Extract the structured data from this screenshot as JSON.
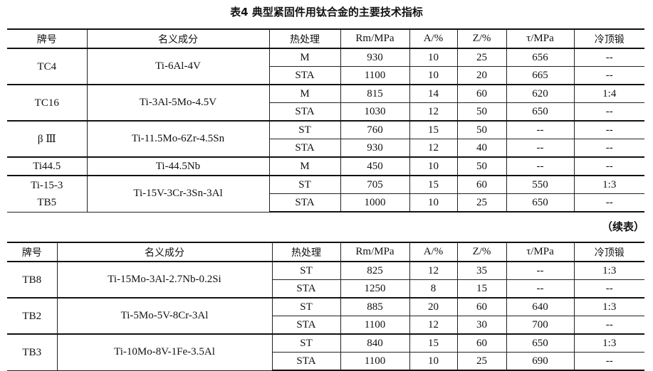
{
  "title": "表4  典型紧固件用钛合金的主要技术指标",
  "continued_label": "（续表）",
  "headers": [
    "牌号",
    "名义成分",
    "热处理",
    "Rm/MPa",
    "A/%",
    "Z/%",
    "τ/MPa",
    "冷顶锻"
  ],
  "table1": [
    {
      "grade": "TC4",
      "composition": "Ti-6Al-4V",
      "rows": [
        {
          "treatment": "M",
          "rm": "930",
          "a": "10",
          "z": "25",
          "tau": "656",
          "cold": "--"
        },
        {
          "treatment": "STA",
          "rm": "1100",
          "a": "10",
          "z": "20",
          "tau": "665",
          "cold": "--"
        }
      ]
    },
    {
      "grade": "TC16",
      "composition": "Ti-3Al-5Mo-4.5V",
      "rows": [
        {
          "treatment": "M",
          "rm": "815",
          "a": "14",
          "z": "60",
          "tau": "620",
          "cold": "1:4"
        },
        {
          "treatment": "STA",
          "rm": "1030",
          "a": "12",
          "z": "50",
          "tau": "650",
          "cold": "--"
        }
      ]
    },
    {
      "grade": "β Ⅲ",
      "composition": "Ti-11.5Mo-6Zr-4.5Sn",
      "rows": [
        {
          "treatment": "ST",
          "rm": "760",
          "a": "15",
          "z": "50",
          "tau": "--",
          "cold": "--"
        },
        {
          "treatment": "STA",
          "rm": "930",
          "a": "12",
          "z": "40",
          "tau": "--",
          "cold": "--"
        }
      ]
    },
    {
      "grade": "Ti44.5",
      "composition": "Ti-44.5Nb",
      "rows": [
        {
          "treatment": "M",
          "rm": "450",
          "a": "10",
          "z": "50",
          "tau": "--",
          "cold": "--"
        }
      ]
    },
    {
      "grade": "Ti-15-3\nTB5",
      "composition": "Ti-15V-3Cr-3Sn-3Al",
      "rows": [
        {
          "treatment": "ST",
          "rm": "705",
          "a": "15",
          "z": "60",
          "tau": "550",
          "cold": "1:3"
        },
        {
          "treatment": "STA",
          "rm": "1000",
          "a": "10",
          "z": "25",
          "tau": "650",
          "cold": "--"
        }
      ]
    }
  ],
  "table2": [
    {
      "grade": "TB8",
      "composition": "Ti-15Mo-3Al-2.7Nb-0.2Si",
      "rows": [
        {
          "treatment": "ST",
          "rm": "825",
          "a": "12",
          "z": "35",
          "tau": "--",
          "cold": "1:3"
        },
        {
          "treatment": "STA",
          "rm": "1250",
          "a": "8",
          "z": "15",
          "tau": "--",
          "cold": "--"
        }
      ]
    },
    {
      "grade": "TB2",
      "composition": "Ti-5Mo-5V-8Cr-3Al",
      "rows": [
        {
          "treatment": "ST",
          "rm": "885",
          "a": "20",
          "z": "60",
          "tau": "640",
          "cold": "1:3"
        },
        {
          "treatment": "STA",
          "rm": "1100",
          "a": "12",
          "z": "30",
          "tau": "700",
          "cold": "--"
        }
      ]
    },
    {
      "grade": "TB3",
      "composition": "Ti-10Mo-8V-1Fe-3.5Al",
      "rows": [
        {
          "treatment": "ST",
          "rm": "840",
          "a": "15",
          "z": "60",
          "tau": "650",
          "cold": "1:3"
        },
        {
          "treatment": "STA",
          "rm": "1100",
          "a": "10",
          "z": "25",
          "tau": "690",
          "cold": "--"
        }
      ]
    }
  ]
}
